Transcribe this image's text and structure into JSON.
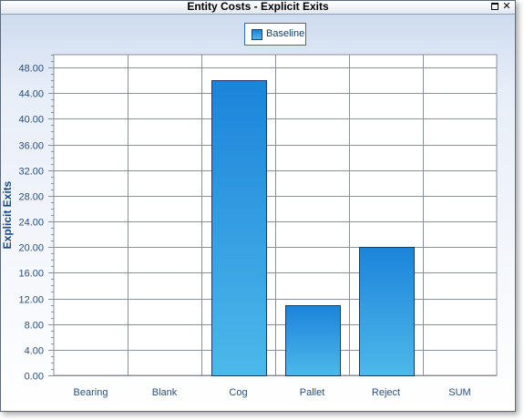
{
  "window": {
    "title": "Entity Costs - Explicit Exits",
    "restore_icon": "restore-icon",
    "close_icon": "close-icon",
    "close_glyph": "✕"
  },
  "colors": {
    "bar_top": "#1c84da",
    "bar_bottom": "#4db8ea",
    "bar_border": "#1a3a68",
    "axis_text": "#2a4e7c",
    "grid": "#8a8f99"
  },
  "legend": {
    "entries": [
      "Baseline"
    ]
  },
  "chart_data": {
    "type": "bar",
    "title": "",
    "xlabel": "",
    "ylabel": "Explicit Exits",
    "categories": [
      "Bearing",
      "Blank",
      "Cog",
      "Pallet",
      "Reject",
      "SUM"
    ],
    "series": [
      {
        "name": "Baseline",
        "values": [
          0,
          0,
          46,
          11,
          20,
          0
        ]
      }
    ],
    "ylim": [
      0,
      50
    ],
    "yticks": [
      "0.00",
      "4.00",
      "8.00",
      "12.00",
      "16.00",
      "20.00",
      "24.00",
      "28.00",
      "32.00",
      "36.00",
      "40.00",
      "44.00",
      "48.00"
    ],
    "ytick_values": [
      0,
      4,
      8,
      12,
      16,
      20,
      24,
      28,
      32,
      36,
      40,
      44,
      48
    ],
    "grid": true,
    "legend_position": "top-center"
  }
}
